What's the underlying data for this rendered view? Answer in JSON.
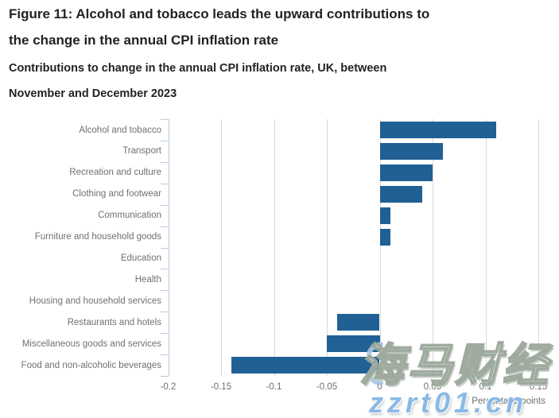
{
  "header": {
    "title_lines": [
      "Figure 11: Alcohol and tobacco leads the upward contributions to",
      "the change in the annual CPI inflation rate"
    ],
    "subtitle_lines": [
      "Contributions to change in the annual CPI inflation rate, UK, between",
      "November and December 2023"
    ]
  },
  "chart_data": {
    "type": "bar",
    "orientation": "horizontal",
    "title": "Figure 11: Alcohol and tobacco leads the upward contributions to the change in the annual CPI inflation rate",
    "subtitle": "Contributions to change in the annual CPI inflation rate, UK, between November and December 2023",
    "categories": [
      "Alcohol and tobacco",
      "Transport",
      "Recreation and culture",
      "Clothing and footwear",
      "Communication",
      "Furniture and household goods",
      "Education",
      "Health",
      "Housing and household services",
      "Restaurants and hotels",
      "Miscellaneous goods and services",
      "Food and non-alcoholic beverages"
    ],
    "values": [
      0.11,
      0.06,
      0.05,
      0.04,
      0.01,
      0.01,
      0,
      0,
      0,
      -0.04,
      -0.05,
      -0.14
    ],
    "xlabel": "Percentage points",
    "xlim": [
      -0.2,
      0.15
    ],
    "x_ticks": [
      -0.2,
      -0.15,
      -0.1,
      -0.05,
      0,
      0.05,
      0.1,
      0.15
    ],
    "x_tick_labels": [
      "-0.2",
      "-0.15",
      "-0.1",
      "-0.05",
      "0",
      "0.05",
      "0.1",
      "0.15"
    ],
    "grid": true,
    "legend": "none",
    "bar_color": "#206095",
    "gridline_color": "#d9d9d9",
    "axis_color": "#bac9dd",
    "label_color": "#707071"
  },
  "watermark": {
    "line1": "海马财经",
    "line2": "zzrt01.cn",
    "blue": "#8ab9e6"
  }
}
